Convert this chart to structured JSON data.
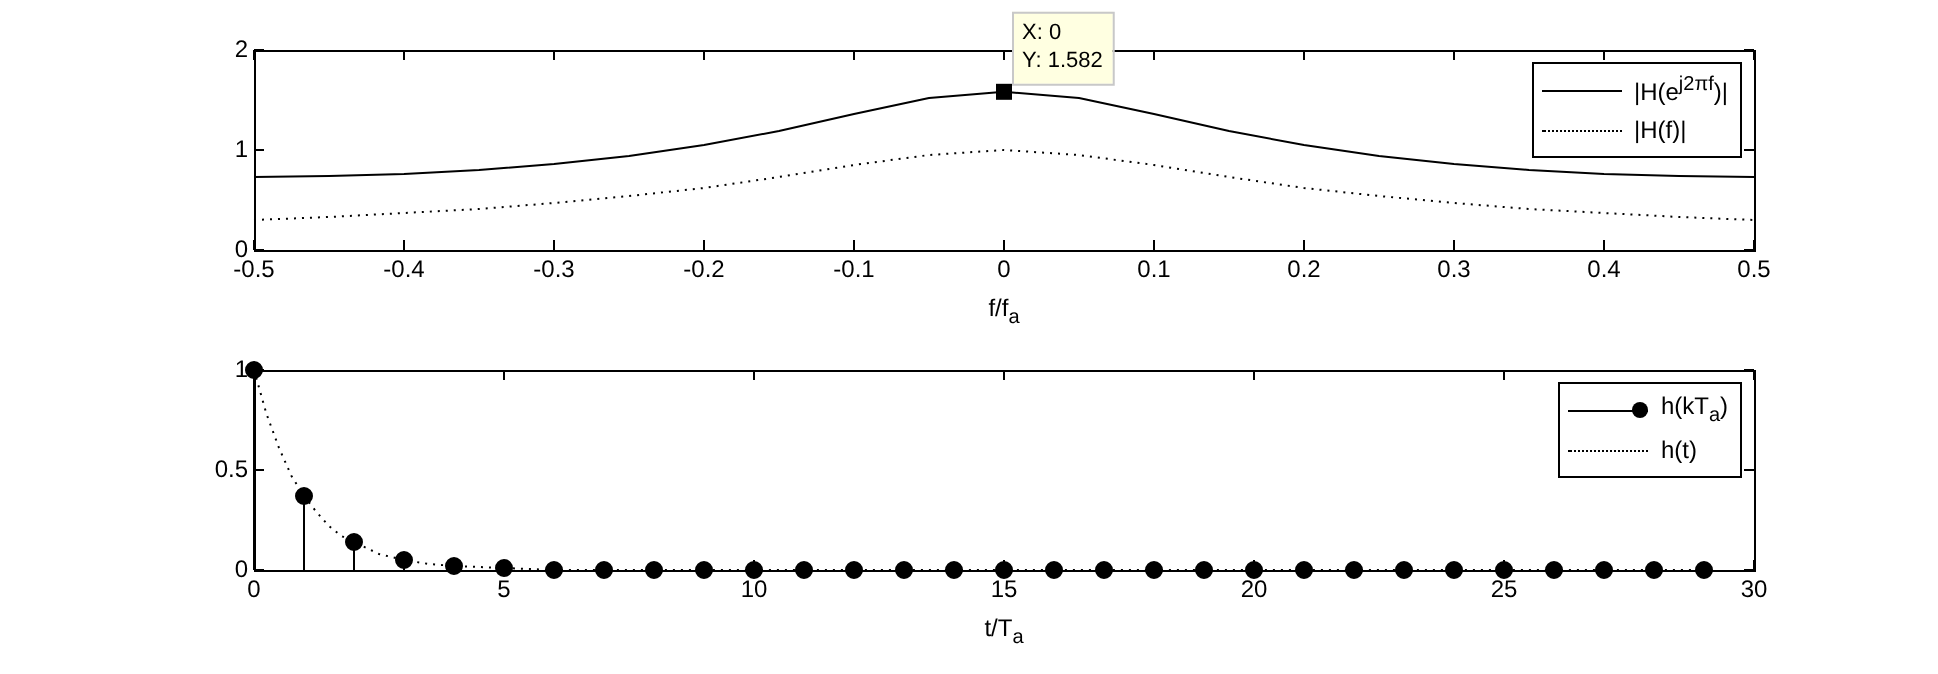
{
  "chart_data": [
    {
      "type": "line",
      "xlabel": "f/f$_{a}$",
      "x": [
        -0.5,
        -0.45,
        -0.4,
        -0.35,
        -0.3,
        -0.25,
        -0.2,
        -0.15,
        -0.1,
        -0.05,
        0,
        0.05,
        0.1,
        0.15,
        0.2,
        0.25,
        0.3,
        0.35,
        0.4,
        0.45,
        0.5
      ],
      "series": [
        {
          "name": "|H(e$^{j2πf}$)|",
          "color": "#000000",
          "line_style": "solid",
          "values": [
            0.73,
            0.74,
            0.76,
            0.8,
            0.86,
            0.94,
            1.05,
            1.19,
            1.36,
            1.52,
            1.582,
            1.52,
            1.36,
            1.19,
            1.05,
            0.94,
            0.86,
            0.8,
            0.76,
            0.74,
            0.73
          ]
        },
        {
          "name": "|H(f)|",
          "color": "#000000",
          "line_style": "dotted",
          "values": [
            0.3,
            0.33,
            0.37,
            0.41,
            0.47,
            0.54,
            0.62,
            0.73,
            0.85,
            0.95,
            1.0,
            0.95,
            0.85,
            0.73,
            0.62,
            0.54,
            0.47,
            0.41,
            0.37,
            0.33,
            0.3
          ]
        }
      ],
      "xlim": [
        -0.5,
        0.5
      ],
      "xticks": [
        -0.5,
        -0.4,
        -0.3,
        -0.2,
        -0.1,
        0,
        0.1,
        0.2,
        0.3,
        0.4,
        0.5
      ],
      "ylim": [
        0,
        2
      ],
      "yticks": [
        0,
        1,
        2
      ],
      "legend": "top right",
      "annotations": [
        {
          "text": "X: 0\nY: 1.582",
          "x": 0,
          "y": 1.582
        }
      ]
    },
    {
      "type": "line",
      "xlabel": "t/T$_{a}$",
      "series": [
        {
          "name": "h(kT$_{a}$)",
          "type": "lollipop",
          "marker": "circle",
          "color": "#000000",
          "x": [
            0,
            1,
            2,
            3,
            4,
            5,
            6,
            7,
            8,
            9,
            10,
            11,
            12,
            13,
            14,
            15,
            16,
            17,
            18,
            19,
            20,
            21,
            22,
            23,
            24,
            25,
            26,
            27,
            28,
            29
          ],
          "values": [
            1,
            0.37,
            0.14,
            0.05,
            0.02,
            0.01,
            0,
            0,
            0,
            0,
            0,
            0,
            0,
            0,
            0,
            0,
            0,
            0,
            0,
            0,
            0,
            0,
            0,
            0,
            0,
            0,
            0,
            0,
            0,
            0
          ]
        },
        {
          "name": "h(t)",
          "color": "#000000",
          "line_style": "dotted",
          "x": [
            0,
            0.25,
            0.5,
            0.75,
            1,
            1.25,
            1.5,
            1.75,
            2,
            2.5,
            3,
            3.5,
            4,
            5,
            6,
            8,
            10,
            15,
            20,
            25,
            29
          ],
          "values": [
            1,
            0.78,
            0.61,
            0.47,
            0.37,
            0.29,
            0.22,
            0.17,
            0.14,
            0.08,
            0.05,
            0.03,
            0.02,
            0.01,
            0,
            0,
            0,
            0,
            0,
            0,
            0
          ]
        }
      ],
      "xlim": [
        0,
        30
      ],
      "xticks": [
        0,
        5,
        10,
        15,
        20,
        25,
        30
      ],
      "ylim": [
        0,
        1
      ],
      "yticks": [
        0,
        0.5,
        1
      ],
      "legend": "top right"
    }
  ]
}
